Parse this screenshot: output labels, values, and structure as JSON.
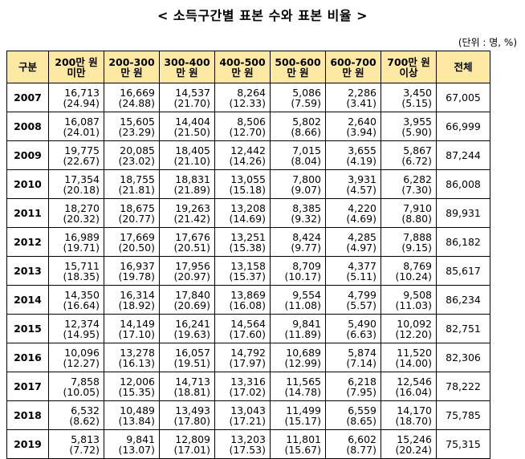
{
  "title": "< 소득구간별 표본 수와 표본 비율 >",
  "unit": "(단위 : 명, %)",
  "table": {
    "headers": [
      [
        "구분"
      ],
      [
        "200만 원",
        "미만"
      ],
      [
        "200-300",
        "만 원"
      ],
      [
        "300-400",
        "만 원"
      ],
      [
        "400-500",
        "만 원"
      ],
      [
        "500-600",
        "만 원"
      ],
      [
        "600-700",
        "만 원"
      ],
      [
        "700만 원",
        "이상"
      ],
      [
        "전체"
      ]
    ],
    "rows": [
      {
        "year": "2007",
        "cells": [
          [
            "16,713",
            "(24.94)"
          ],
          [
            "16,669",
            "(24.88)"
          ],
          [
            "14,537",
            "(21.70)"
          ],
          [
            "8,264",
            "(12.33)"
          ],
          [
            "5,086",
            "(7.59)"
          ],
          [
            "2,286",
            "(3.41)"
          ],
          [
            "3,450",
            "(5.15)"
          ]
        ],
        "total": "67,005"
      },
      {
        "year": "2008",
        "cells": [
          [
            "16,087",
            "(24.01)"
          ],
          [
            "15,605",
            "(23.29)"
          ],
          [
            "14,404",
            "(21.50)"
          ],
          [
            "8,506",
            "(12.70)"
          ],
          [
            "5,802",
            "(8.66)"
          ],
          [
            "2,640",
            "(3.94)"
          ],
          [
            "3,955",
            "(5.90)"
          ]
        ],
        "total": "66,999"
      },
      {
        "year": "2009",
        "cells": [
          [
            "19,775",
            "(22.67)"
          ],
          [
            "20,085",
            "(23.02)"
          ],
          [
            "18,405",
            "(21.10)"
          ],
          [
            "12,442",
            "(14.26)"
          ],
          [
            "7,015",
            "(8.04)"
          ],
          [
            "3,655",
            "(4.19)"
          ],
          [
            "5,867",
            "(6.72)"
          ]
        ],
        "total": "87,244"
      },
      {
        "year": "2010",
        "cells": [
          [
            "17,354",
            "(20.18)"
          ],
          [
            "18,755",
            "(21.81)"
          ],
          [
            "18,831",
            "(21.89)"
          ],
          [
            "13,055",
            "(15.18)"
          ],
          [
            "7,800",
            "(9.07)"
          ],
          [
            "3,931",
            "(4.57)"
          ],
          [
            "6,282",
            "(7.30)"
          ]
        ],
        "total": "86,008"
      },
      {
        "year": "2011",
        "cells": [
          [
            "18,270",
            "(20.32)"
          ],
          [
            "18,675",
            "(20.77)"
          ],
          [
            "19,263",
            "(21.42)"
          ],
          [
            "13,208",
            "(14.69)"
          ],
          [
            "8,385",
            "(9.32)"
          ],
          [
            "4,220",
            "(4.69)"
          ],
          [
            "7,910",
            "(8.80)"
          ]
        ],
        "total": "89,931"
      },
      {
        "year": "2012",
        "cells": [
          [
            "16,989",
            "(19.71)"
          ],
          [
            "17,669",
            "(20.50)"
          ],
          [
            "17,676",
            "(20.51)"
          ],
          [
            "13,251",
            "(15.38)"
          ],
          [
            "8,424",
            "(9.77)"
          ],
          [
            "4,285",
            "(4.97)"
          ],
          [
            "7,888",
            "(9.15)"
          ]
        ],
        "total": "86,182"
      },
      {
        "year": "2013",
        "cells": [
          [
            "15,711",
            "(18.35)"
          ],
          [
            "16,937",
            "(19.78)"
          ],
          [
            "17,956",
            "(20.97)"
          ],
          [
            "13,158",
            "(15.37)"
          ],
          [
            "8,709",
            "(10.17)"
          ],
          [
            "4,377",
            "(5.11)"
          ],
          [
            "8,769",
            "(10.24)"
          ]
        ],
        "total": "85,617"
      },
      {
        "year": "2014",
        "cells": [
          [
            "14,350",
            "(16.64)"
          ],
          [
            "16,314",
            "(18.92)"
          ],
          [
            "17,840",
            "(20.69)"
          ],
          [
            "13,869",
            "(16.08)"
          ],
          [
            "9,554",
            "(11.08)"
          ],
          [
            "4,799",
            "(5.57)"
          ],
          [
            "9,508",
            "(11.03)"
          ]
        ],
        "total": "86,234"
      },
      {
        "year": "2015",
        "cells": [
          [
            "12,374",
            "(14.95)"
          ],
          [
            "14,149",
            "(17.10)"
          ],
          [
            "16,241",
            "(19.63)"
          ],
          [
            "14,564",
            "(17.60)"
          ],
          [
            "9,841",
            "(11.89)"
          ],
          [
            "5,490",
            "(6.63)"
          ],
          [
            "10,092",
            "(12.20)"
          ]
        ],
        "total": "82,751"
      },
      {
        "year": "2016",
        "cells": [
          [
            "10,096",
            "(12.27)"
          ],
          [
            "13,278",
            "(16.13)"
          ],
          [
            "16,057",
            "(19.51)"
          ],
          [
            "14,792",
            "(17.97)"
          ],
          [
            "10,689",
            "(12.99)"
          ],
          [
            "5,874",
            "(7.14)"
          ],
          [
            "11,520",
            "(14.00)"
          ]
        ],
        "total": "82,306"
      },
      {
        "year": "2017",
        "cells": [
          [
            "7,858",
            "(10.05)"
          ],
          [
            "12,006",
            "(15.35)"
          ],
          [
            "14,713",
            "(18.81)"
          ],
          [
            "13,316",
            "(17.02)"
          ],
          [
            "11,565",
            "(14.78)"
          ],
          [
            "6,218",
            "(7.95)"
          ],
          [
            "12,546",
            "(16.04)"
          ]
        ],
        "total": "78,222"
      },
      {
        "year": "2018",
        "cells": [
          [
            "6,532",
            "(8.62)"
          ],
          [
            "10,489",
            "(13.84)"
          ],
          [
            "13,493",
            "(17.80)"
          ],
          [
            "13,043",
            "(17.21)"
          ],
          [
            "11,499",
            "(15.17)"
          ],
          [
            "6,559",
            "(8.65)"
          ],
          [
            "14,170",
            "(18.70)"
          ]
        ],
        "total": "75,785"
      },
      {
        "year": "2019",
        "cells": [
          [
            "5,813",
            "(7.72)"
          ],
          [
            "9,841",
            "(13.07)"
          ],
          [
            "12,809",
            "(17.01)"
          ],
          [
            "13,203",
            "(17.53)"
          ],
          [
            "11,801",
            "(15.67)"
          ],
          [
            "6,602",
            "(8.77)"
          ],
          [
            "15,246",
            "(20.24)"
          ]
        ],
        "total": "75,315"
      }
    ]
  },
  "colors": {
    "header_bg": "#fde9a3",
    "border": "#000000"
  }
}
